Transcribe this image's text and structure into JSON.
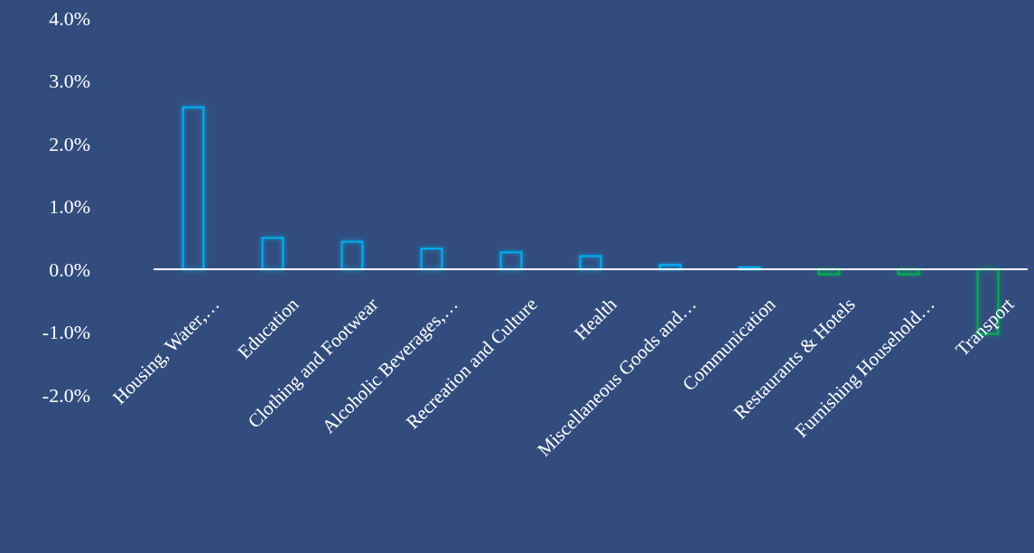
{
  "chart_data": {
    "type": "bar",
    "categories": [
      "Housing, Water,…",
      "Education",
      "Clothing and Footwear",
      "Alcoholic Beverages,…",
      "Recreation and Culture",
      "Health",
      "Miscellaneous Goods and…",
      "Communication",
      "Restaurants & Hotels",
      "Furnishing Household…",
      "Transport"
    ],
    "values": [
      2.58,
      0.5,
      0.44,
      0.33,
      0.27,
      0.21,
      0.07,
      0.03,
      -0.08,
      -0.08,
      -1.03
    ],
    "colors": [
      "#00b0f0",
      "#00b0f0",
      "#00b0f0",
      "#00b0f0",
      "#00b0f0",
      "#00b0f0",
      "#00b0f0",
      "#00b0f0",
      "#00b050",
      "#00b050",
      "#00b050"
    ],
    "ylim": [
      -2,
      4
    ],
    "yticks": [
      {
        "value": -2,
        "label": "-2.0%"
      },
      {
        "value": -1,
        "label": "-1.0%"
      },
      {
        "value": 0,
        "label": "0.0%"
      },
      {
        "value": 1,
        "label": "1.0%"
      },
      {
        "value": 2,
        "label": "2.0%"
      },
      {
        "value": 3,
        "label": "3.0%"
      },
      {
        "value": 4,
        "label": "4.0%"
      }
    ],
    "grid": false
  }
}
